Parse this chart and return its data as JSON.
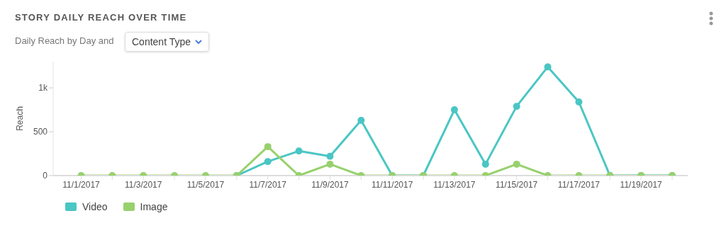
{
  "chart_data": {
    "type": "line",
    "title": "STORY DAILY REACH OVER TIME",
    "subtitle": "Daily Reach by Day and",
    "annotations": [
      "Content Type"
    ],
    "ylabel": "Reach",
    "categories": [
      "11/1/2017",
      null,
      "11/3/2017",
      null,
      "11/5/2017",
      null,
      "11/7/2017",
      null,
      "11/9/2017",
      null,
      "11/11/2017",
      null,
      "11/13/2017",
      null,
      "11/15/2017",
      null,
      "11/17/2017",
      null,
      "11/19/2017",
      null
    ],
    "series": [
      {
        "name": "Video",
        "color": "#4ac6c4",
        "values": [
          null,
          null,
          null,
          null,
          null,
          0,
          160,
          280,
          220,
          630,
          0,
          0,
          750,
          130,
          790,
          1240,
          840,
          0,
          0,
          0
        ]
      },
      {
        "name": "Image",
        "color": "#97d16d",
        "values": [
          0,
          0,
          0,
          0,
          0,
          0,
          330,
          0,
          130,
          0,
          0,
          0,
          0,
          0,
          130,
          0,
          0,
          0,
          0,
          0
        ]
      }
    ],
    "ylim": [
      0,
      1300
    ],
    "yticks": [
      0,
      500,
      {
        "value": 1000,
        "label": "1k"
      }
    ],
    "grid": false,
    "legend": "bottom left",
    "marker": "circle",
    "line_style": "solid"
  }
}
